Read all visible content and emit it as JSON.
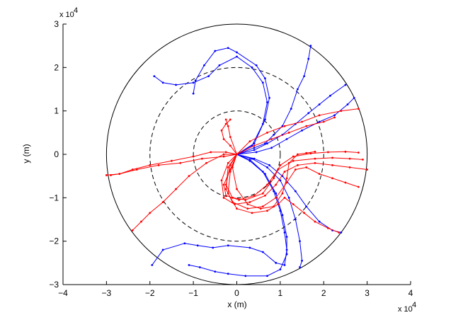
{
  "chart_data": {
    "type": "line",
    "title": "",
    "xlabel": "x (m)",
    "ylabel": "y (m)",
    "xlim": [
      -40000,
      40000
    ],
    "ylim": [
      -30000,
      30000
    ],
    "x_ticks": [
      -40000,
      -30000,
      -20000,
      -10000,
      0,
      10000,
      20000,
      30000,
      40000
    ],
    "y_ticks": [
      -30000,
      -20000,
      -10000,
      0,
      10000,
      20000,
      30000
    ],
    "x_tick_labels": [
      "−4",
      "−3",
      "−2",
      "−1",
      "0",
      "1",
      "2",
      "3",
      "4"
    ],
    "y_tick_labels": [
      "−3",
      "−2",
      "−1",
      "0",
      "1",
      "2",
      "3"
    ],
    "x_exponent_label": "x 10",
    "y_exponent_label": "x 10",
    "exponent": "4",
    "grid": false,
    "legend": "none",
    "colors": {
      "series_a": "#0000ff",
      "series_b": "#ff0000",
      "circle": "#000000"
    },
    "circles": [
      {
        "name": "outer",
        "r": 30000,
        "style": "solid"
      },
      {
        "name": "middle",
        "r": 20000,
        "style": "dashed"
      },
      {
        "name": "inner",
        "r": 10000,
        "style": "dashed"
      }
    ],
    "series": [
      {
        "group": "blue",
        "color": "#0000ff",
        "points": [
          [
            0,
            0
          ],
          [
            4000,
            2500
          ],
          [
            6500,
            8000
          ],
          [
            7500,
            13000
          ],
          [
            6500,
            17500
          ],
          [
            4500,
            20500
          ],
          [
            0,
            23500
          ],
          [
            -2000,
            24500
          ],
          [
            -5000,
            23800
          ],
          [
            -7500,
            20500
          ],
          [
            -9500,
            17000
          ],
          [
            -10000,
            14000
          ]
        ]
      },
      {
        "group": "blue",
        "color": "#0000ff",
        "points": [
          [
            0,
            0
          ],
          [
            3500,
            2000
          ],
          [
            6000,
            7000
          ],
          [
            7000,
            12000
          ],
          [
            6000,
            16500
          ],
          [
            3500,
            20000
          ],
          [
            0,
            22500
          ],
          [
            -4000,
            20500
          ],
          [
            -6500,
            18000
          ],
          [
            -10000,
            16500
          ],
          [
            -14000,
            16000
          ],
          [
            -17000,
            16500
          ],
          [
            -19000,
            18000
          ]
        ]
      },
      {
        "group": "blue",
        "color": "#0000ff",
        "points": [
          [
            0,
            0
          ],
          [
            4000,
            1500
          ],
          [
            6500,
            2500
          ],
          [
            8500,
            4500
          ],
          [
            10500,
            6500
          ],
          [
            12500,
            10500
          ],
          [
            14000,
            15000
          ],
          [
            15500,
            18000
          ],
          [
            16500,
            22000
          ],
          [
            17000,
            25000
          ]
        ]
      },
      {
        "group": "blue",
        "color": "#0000ff",
        "points": [
          [
            0,
            0
          ],
          [
            4000,
            1000
          ],
          [
            7000,
            2500
          ],
          [
            10500,
            4500
          ],
          [
            13500,
            7000
          ],
          [
            16500,
            9500
          ],
          [
            19000,
            11500
          ],
          [
            21500,
            13500
          ],
          [
            25000,
            16000
          ]
        ]
      },
      {
        "group": "blue",
        "color": "#0000ff",
        "points": [
          [
            0,
            0
          ],
          [
            4500,
            500
          ],
          [
            8000,
            1500
          ],
          [
            11500,
            3500
          ],
          [
            15000,
            5500
          ],
          [
            19000,
            7500
          ],
          [
            22500,
            9000
          ],
          [
            25500,
            11500
          ],
          [
            27000,
            13000
          ]
        ]
      },
      {
        "group": "blue",
        "color": "#0000ff",
        "points": [
          [
            0,
            0
          ],
          [
            3000,
            -1500
          ],
          [
            6500,
            -4500
          ],
          [
            9000,
            -9000
          ],
          [
            10500,
            -14000
          ],
          [
            11500,
            -19000
          ],
          [
            11500,
            -23000
          ],
          [
            10000,
            -26500
          ],
          [
            7000,
            -28000
          ],
          [
            2000,
            -28000
          ],
          [
            -2000,
            -27500
          ],
          [
            -5000,
            -27000
          ],
          [
            -8500,
            -26000
          ],
          [
            -11000,
            -25500
          ]
        ]
      },
      {
        "group": "blue",
        "color": "#0000ff",
        "points": [
          [
            0,
            0
          ],
          [
            3000,
            -1200
          ],
          [
            6000,
            -4000
          ],
          [
            8500,
            -8500
          ],
          [
            10000,
            -13000
          ],
          [
            11000,
            -18000
          ],
          [
            11500,
            -22000
          ],
          [
            11000,
            -25500
          ],
          [
            9000,
            -25000
          ],
          [
            6000,
            -22500
          ],
          [
            3000,
            -21500
          ],
          [
            -2000,
            -21000
          ],
          [
            -5500,
            -21500
          ],
          [
            -9000,
            -21000
          ],
          [
            -12000,
            -20500
          ],
          [
            -17000,
            -22000
          ],
          [
            -19500,
            -25500
          ]
        ]
      },
      {
        "group": "blue",
        "color": "#0000ff",
        "points": [
          [
            0,
            0
          ],
          [
            3500,
            -1000
          ],
          [
            7000,
            -3000
          ],
          [
            10000,
            -6000
          ],
          [
            12000,
            -10000
          ],
          [
            13500,
            -15000
          ],
          [
            14500,
            -20000
          ],
          [
            15000,
            -24500
          ],
          [
            14500,
            -26000
          ]
        ]
      },
      {
        "group": "blue",
        "color": "#0000ff",
        "points": [
          [
            0,
            0
          ],
          [
            4000,
            -1000
          ],
          [
            7500,
            -2500
          ],
          [
            10500,
            -5000
          ],
          [
            13500,
            -8500
          ],
          [
            16000,
            -12000
          ],
          [
            19000,
            -15500
          ],
          [
            22000,
            -17500
          ],
          [
            24000,
            -18000
          ]
        ]
      },
      {
        "group": "red",
        "color": "#ff0000",
        "points": [
          [
            0,
            0
          ],
          [
            -2500,
            500
          ],
          [
            -6000,
            500
          ],
          [
            -10000,
            -500
          ],
          [
            -15000,
            -1500
          ],
          [
            -20000,
            -2500
          ],
          [
            -24000,
            -3500
          ],
          [
            -27000,
            -4500
          ],
          [
            -30000,
            -4800
          ]
        ]
      },
      {
        "group": "red",
        "color": "#ff0000",
        "points": [
          [
            0,
            0
          ],
          [
            -3000,
            0
          ],
          [
            -7000,
            -2000
          ],
          [
            -11000,
            -5000
          ],
          [
            -14000,
            -8000
          ],
          [
            -17000,
            -11000
          ],
          [
            -20000,
            -13500
          ],
          [
            -22000,
            -15500
          ],
          [
            -24000,
            -17500
          ]
        ]
      },
      {
        "group": "red",
        "color": "#ff0000",
        "points": [
          [
            0,
            0
          ],
          [
            -3000,
            -500
          ],
          [
            -8000,
            -1000
          ],
          [
            -13000,
            -2000
          ],
          [
            -18000,
            -2500
          ],
          [
            -23000,
            -3500
          ],
          [
            -27000,
            -4500
          ],
          [
            -29000,
            -4800
          ]
        ]
      },
      {
        "group": "red",
        "color": "#ff0000",
        "points": [
          [
            0,
            0
          ],
          [
            -1500,
            4000
          ],
          [
            -2000,
            6500
          ],
          [
            -2500,
            8000
          ]
        ]
      },
      {
        "group": "red",
        "color": "#ff0000",
        "points": [
          [
            0,
            0
          ],
          [
            3000,
            3000
          ],
          [
            7000,
            5000
          ],
          [
            11000,
            6500
          ],
          [
            15000,
            7500
          ],
          [
            19000,
            9000
          ],
          [
            24000,
            10000
          ],
          [
            28000,
            10500
          ]
        ]
      },
      {
        "group": "red",
        "color": "#ff0000",
        "points": [
          [
            0,
            0
          ],
          [
            4000,
            2000
          ],
          [
            8000,
            3500
          ],
          [
            12000,
            5000
          ],
          [
            16000,
            6500
          ],
          [
            20000,
            7500
          ],
          [
            22500,
            8500
          ]
        ]
      },
      {
        "group": "red",
        "color": "#ff0000",
        "points": [
          [
            0,
            0
          ],
          [
            -1500,
            -3500
          ],
          [
            -3000,
            -7000
          ],
          [
            -2500,
            -9500
          ],
          [
            500,
            -10500
          ],
          [
            4000,
            -9500
          ],
          [
            7000,
            -7000
          ],
          [
            9500,
            -3500
          ],
          [
            13000,
            -1500
          ],
          [
            18000,
            -1000
          ],
          [
            22000,
            -800
          ],
          [
            26000,
            -1000
          ],
          [
            29000,
            -1200
          ]
        ]
      },
      {
        "group": "red",
        "color": "#ff0000",
        "points": [
          [
            0,
            0
          ],
          [
            -1500,
            -2500
          ],
          [
            -2500,
            -7000
          ],
          [
            -1000,
            -10000
          ],
          [
            2000,
            -10500
          ],
          [
            6000,
            -9000
          ],
          [
            8500,
            -5500
          ],
          [
            10000,
            -2500
          ],
          [
            13000,
            -500
          ],
          [
            17000,
            200
          ],
          [
            21000,
            500
          ],
          [
            25000,
            600
          ],
          [
            28000,
            400
          ]
        ]
      },
      {
        "group": "red",
        "color": "#ff0000",
        "points": [
          [
            0,
            0
          ],
          [
            -2000,
            -2000
          ],
          [
            -3500,
            -6000
          ],
          [
            -3000,
            -10000
          ],
          [
            -500,
            -11500
          ],
          [
            3000,
            -11000
          ],
          [
            6500,
            -9500
          ],
          [
            9000,
            -7000
          ],
          [
            11000,
            -4000
          ],
          [
            14000,
            -2500
          ],
          [
            18000,
            -2000
          ],
          [
            22000,
            -2500
          ],
          [
            26000,
            -3000
          ],
          [
            30000,
            -3500
          ]
        ]
      },
      {
        "group": "red",
        "color": "#ff0000",
        "points": [
          [
            0,
            0
          ],
          [
            -2000,
            -3000
          ],
          [
            -2500,
            -8000
          ],
          [
            -1000,
            -11000
          ],
          [
            2500,
            -12500
          ],
          [
            6000,
            -12000
          ],
          [
            9000,
            -10000
          ],
          [
            11500,
            -6500
          ],
          [
            13500,
            -3500
          ],
          [
            16000,
            -3000
          ],
          [
            19000,
            -4500
          ],
          [
            22000,
            -5500
          ],
          [
            25000,
            -6500
          ],
          [
            28000,
            -7500
          ]
        ]
      },
      {
        "group": "red",
        "color": "#ff0000",
        "points": [
          [
            0,
            0
          ],
          [
            -1000,
            -3000
          ],
          [
            0,
            -8000
          ],
          [
            2500,
            -11500
          ],
          [
            5500,
            -12500
          ],
          [
            8500,
            -12000
          ],
          [
            10500,
            -9000
          ],
          [
            11500,
            -5500
          ],
          [
            12000,
            -2000
          ],
          [
            14000,
            0
          ],
          [
            16000,
            300
          ],
          [
            18000,
            600
          ]
        ]
      },
      {
        "group": "red",
        "color": "#ff0000",
        "points": [
          [
            0,
            0
          ],
          [
            -1500,
            -4000
          ],
          [
            -2000,
            -9000
          ],
          [
            0,
            -12500
          ],
          [
            3500,
            -13500
          ],
          [
            7000,
            -13000
          ],
          [
            9500,
            -11500
          ],
          [
            11000,
            -10000
          ],
          [
            13000,
            -11500
          ],
          [
            15500,
            -13500
          ],
          [
            18000,
            -15500
          ],
          [
            21000,
            -17000
          ],
          [
            23500,
            -18000
          ]
        ]
      },
      {
        "group": "red",
        "color": "#ff0000",
        "points": [
          [
            0,
            0
          ],
          [
            -1500,
            2000
          ],
          [
            -3000,
            3500
          ],
          [
            -3500,
            5500
          ],
          [
            -2500,
            7000
          ],
          [
            -1500,
            8000
          ]
        ]
      }
    ]
  }
}
